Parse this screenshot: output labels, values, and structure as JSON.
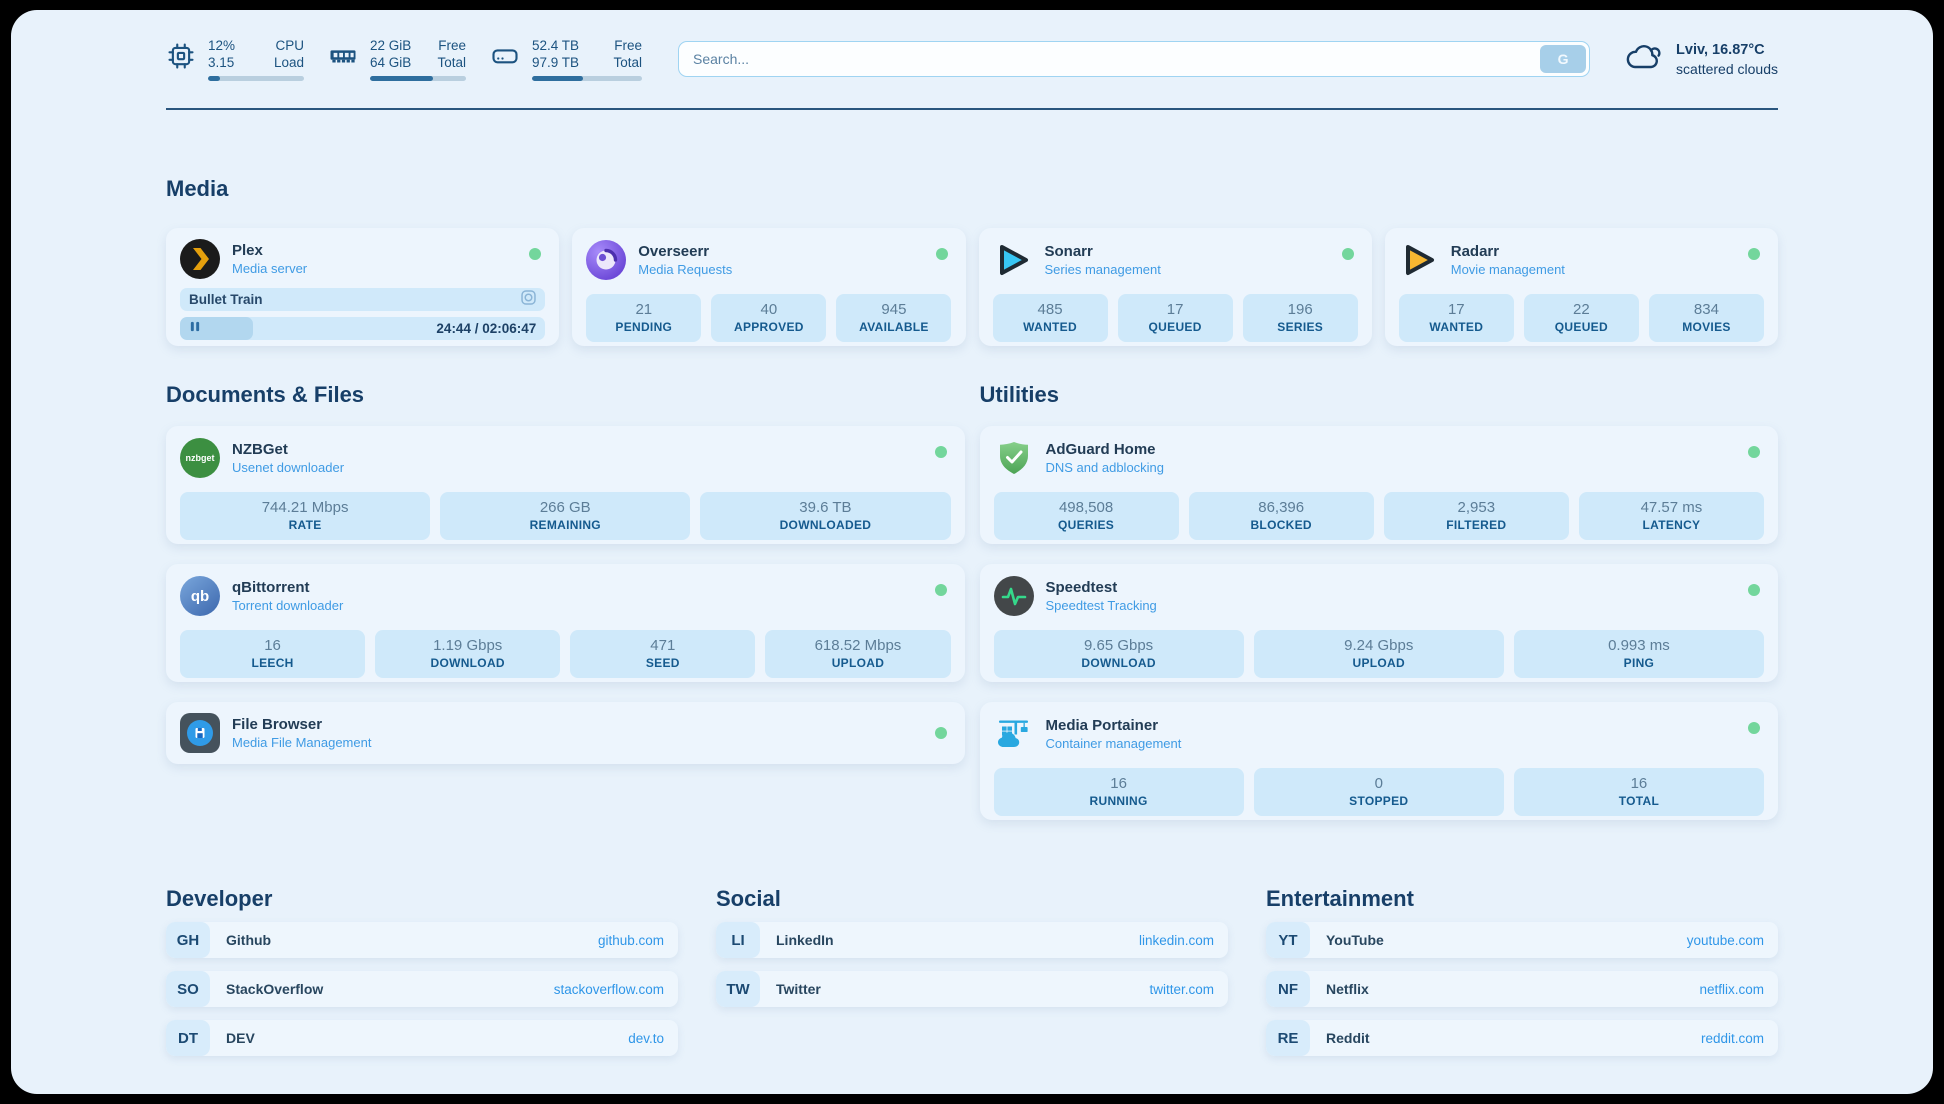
{
  "topbar": {
    "hardware": [
      {
        "icon": "cpu-icon",
        "rows": [
          {
            "value": "12%",
            "label": "CPU"
          },
          {
            "value": "3.15",
            "label": "Load"
          }
        ],
        "progress_pct": 12
      },
      {
        "icon": "ram-icon",
        "rows": [
          {
            "value": "22 GiB",
            "label": "Free"
          },
          {
            "value": "64 GiB",
            "label": "Total"
          }
        ],
        "progress_pct": 66
      },
      {
        "icon": "disk-icon",
        "rows": [
          {
            "value": "52.4 TB",
            "label": "Free"
          },
          {
            "value": "97.9 TB",
            "label": "Total"
          }
        ],
        "progress_pct": 46
      }
    ],
    "search": {
      "placeholder": "Search...",
      "button_label": "G"
    },
    "weather": {
      "location": "Lviv, 16.87°C",
      "condition": "scattered clouds"
    }
  },
  "sections": {
    "media": {
      "title": "Media",
      "apps": {
        "plex": {
          "name": "Plex",
          "subtitle": "Media server",
          "status": "online",
          "now_playing": "Bullet Train",
          "progress_pct": 20,
          "time": "24:44 / 02:06:47"
        },
        "overseerr": {
          "name": "Overseerr",
          "subtitle": "Media Requests",
          "status": "online",
          "stats": [
            {
              "value": "21",
              "label": "PENDING"
            },
            {
              "value": "40",
              "label": "APPROVED"
            },
            {
              "value": "945",
              "label": "AVAILABLE"
            }
          ]
        },
        "sonarr": {
          "name": "Sonarr",
          "subtitle": "Series management",
          "status": "online",
          "stats": [
            {
              "value": "485",
              "label": "WANTED"
            },
            {
              "value": "17",
              "label": "QUEUED"
            },
            {
              "value": "196",
              "label": "SERIES"
            }
          ]
        },
        "radarr": {
          "name": "Radarr",
          "subtitle": "Movie management",
          "status": "online",
          "stats": [
            {
              "value": "17",
              "label": "WANTED"
            },
            {
              "value": "22",
              "label": "QUEUED"
            },
            {
              "value": "834",
              "label": "MOVIES"
            }
          ]
        }
      }
    },
    "documents": {
      "title": "Documents & Files",
      "apps": {
        "nzbget": {
          "name": "NZBGet",
          "subtitle": "Usenet downloader",
          "status": "online",
          "stats": [
            {
              "value": "744.21 Mbps",
              "label": "RATE"
            },
            {
              "value": "266 GB",
              "label": "REMAINING"
            },
            {
              "value": "39.6 TB",
              "label": "DOWNLOADED"
            }
          ]
        },
        "qbittorrent": {
          "name": "qBittorrent",
          "subtitle": "Torrent downloader",
          "status": "online",
          "stats": [
            {
              "value": "16",
              "label": "LEECH"
            },
            {
              "value": "1.19 Gbps",
              "label": "DOWNLOAD"
            },
            {
              "value": "471",
              "label": "SEED"
            },
            {
              "value": "618.52 Mbps",
              "label": "UPLOAD"
            }
          ]
        },
        "filebrowser": {
          "name": "File Browser",
          "subtitle": "Media File Management",
          "status": "online"
        }
      }
    },
    "utilities": {
      "title": "Utilities",
      "apps": {
        "adguard": {
          "name": "AdGuard Home",
          "subtitle": "DNS and adblocking",
          "status": "online",
          "stats": [
            {
              "value": "498,508",
              "label": "QUERIES"
            },
            {
              "value": "86,396",
              "label": "BLOCKED"
            },
            {
              "value": "2,953",
              "label": "FILTERED"
            },
            {
              "value": "47.57 ms",
              "label": "LATENCY"
            }
          ]
        },
        "speedtest": {
          "name": "Speedtest",
          "subtitle": "Speedtest Tracking",
          "status": "online",
          "stats": [
            {
              "value": "9.65 Gbps",
              "label": "DOWNLOAD"
            },
            {
              "value": "9.24 Gbps",
              "label": "UPLOAD"
            },
            {
              "value": "0.993 ms",
              "label": "PING"
            }
          ]
        },
        "portainer": {
          "name": "Media Portainer",
          "subtitle": "Container management",
          "status": "online",
          "stats": [
            {
              "value": "16",
              "label": "RUNNING"
            },
            {
              "value": "0",
              "label": "STOPPED"
            },
            {
              "value": "16",
              "label": "TOTAL"
            }
          ]
        }
      }
    },
    "bookmarks": {
      "developer": {
        "title": "Developer",
        "links": [
          {
            "abbr": "GH",
            "name": "Github",
            "url": "github.com"
          },
          {
            "abbr": "SO",
            "name": "StackOverflow",
            "url": "stackoverflow.com"
          },
          {
            "abbr": "DT",
            "name": "DEV",
            "url": "dev.to"
          }
        ]
      },
      "social": {
        "title": "Social",
        "links": [
          {
            "abbr": "LI",
            "name": "LinkedIn",
            "url": "linkedin.com"
          },
          {
            "abbr": "TW",
            "name": "Twitter",
            "url": "twitter.com"
          }
        ]
      },
      "entertainment": {
        "title": "Entertainment",
        "links": [
          {
            "abbr": "YT",
            "name": "YouTube",
            "url": "youtube.com"
          },
          {
            "abbr": "NF",
            "name": "Netflix",
            "url": "netflix.com"
          },
          {
            "abbr": "RE",
            "name": "Reddit",
            "url": "reddit.com"
          }
        ]
      }
    }
  },
  "colors": {
    "panel_bg": "#e8f2fb",
    "navy": "#173f68",
    "accent_blue": "#3f9be4",
    "status_online": "#73d69c",
    "stat_bg": "#cfe9fa",
    "bar_fill": "#2e6e9e"
  }
}
